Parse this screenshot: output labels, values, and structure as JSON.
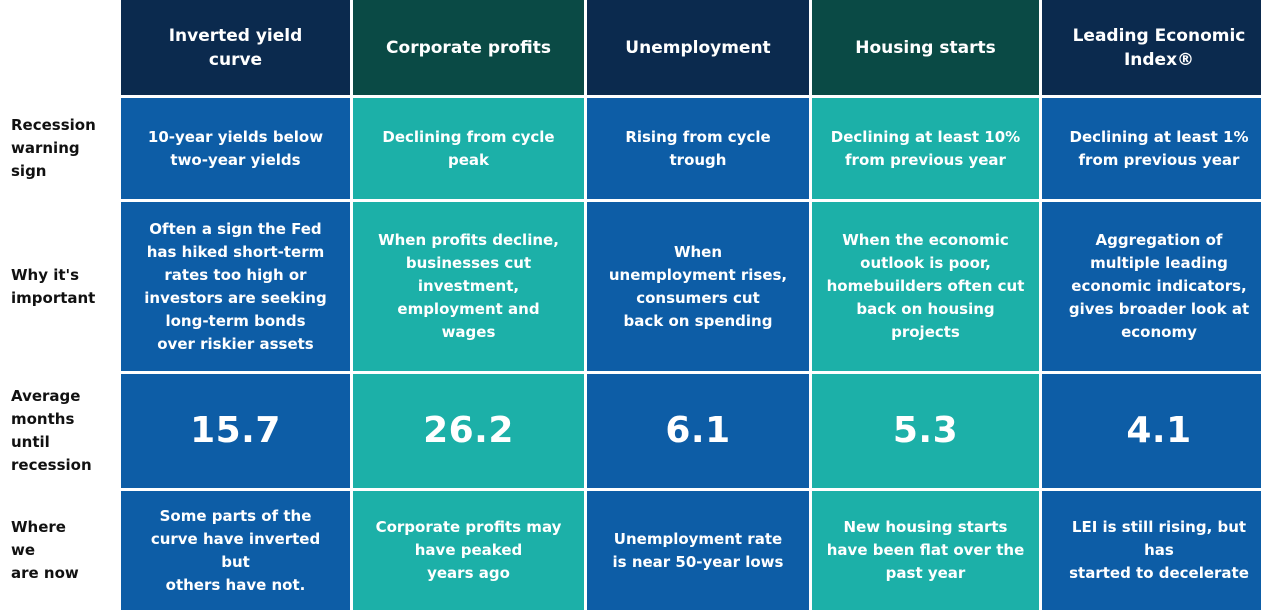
{
  "colors": {
    "header_navy": "#0b2a4e",
    "header_green": "#0a4a45",
    "blue": "#0d5da6",
    "teal": "#1cb0a8",
    "label_text": "#111111"
  },
  "chart_data": {
    "type": "table",
    "columns": [
      "Inverted yield\ncurve",
      "Corporate profits",
      "Unemployment",
      "Housing starts",
      "Leading Economic\nIndex®"
    ],
    "header_colors": [
      "#0b2a4e",
      "#0a4a45",
      "#0b2a4e",
      "#0a4a45",
      "#0b2a4e"
    ],
    "rows": [
      {
        "label": "Recession\nwarning\nsign",
        "cells": [
          "10-year yields below\ntwo-year yields",
          "Declining from cycle\npeak",
          "Rising from cycle\ntrough",
          "Declining at least 10%\nfrom previous year",
          "Declining at least 1%\nfrom previous year"
        ]
      },
      {
        "label": "Why it's\nimportant",
        "cells": [
          "Often a sign the Fed\nhas hiked short-term\nrates too high or\ninvestors are seeking\nlong-term bonds\nover riskier assets",
          "When profits decline,\nbusinesses cut\ninvestment,\nemployment and\nwages",
          "When\nunemployment rises,\nconsumers cut\nback on spending",
          "When the economic\noutlook is poor,\nhomebuilders often cut\nback on housing\nprojects",
          "Aggregation of\nmultiple leading\neconomic indicators,\ngives broader look at\neconomy"
        ]
      },
      {
        "label": "Average\nmonths\nuntil\nrecession",
        "cells": [
          "15.7",
          "26.2",
          "6.1",
          "5.3",
          "4.1"
        ],
        "values": [
          15.7,
          26.2,
          6.1,
          5.3,
          4.1
        ],
        "big": true
      },
      {
        "label": "Where\nwe\n are now",
        "cells": [
          "Some parts of the\ncurve have inverted but\nothers have not.",
          "Corporate profits may\nhave peaked\nyears ago",
          "Unemployment rate\nis near 50-year lows",
          "New housing starts\nhave been flat over the\npast year",
          "LEI is still rising, but has\nstarted to decelerate"
        ]
      }
    ],
    "body_colors": [
      "#0d5da6",
      "#1cb0a8",
      "#0d5da6",
      "#1cb0a8",
      "#0d5da6"
    ]
  }
}
